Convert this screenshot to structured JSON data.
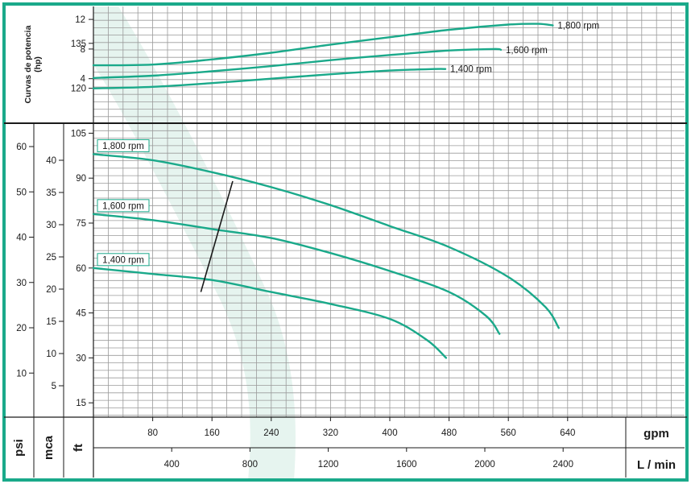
{
  "colors": {
    "frame": "#1aa98a",
    "curve": "#1aa98a",
    "grid": "#9a9a9a",
    "band": "#dcefe8",
    "text": "#1a1a1a"
  },
  "chart_data": [
    {
      "type": "line",
      "ylabel": "Curvas de potencia (hp)",
      "yticks": [
        "4",
        "8",
        "12"
      ],
      "ylim": [
        2,
        14.5
      ],
      "xlim": [
        0,
        760
      ],
      "grid": true,
      "series": [
        {
          "name": "1,800 rpm",
          "x": [
            0,
            80,
            160,
            240,
            320,
            400,
            480,
            560,
            600,
            620
          ],
          "y": [
            5.8,
            5.9,
            6.6,
            7.5,
            8.6,
            9.6,
            10.6,
            11.3,
            11.4,
            11.2
          ]
        },
        {
          "name": "1,600 rpm",
          "x": [
            0,
            80,
            160,
            240,
            320,
            400,
            480,
            540,
            550
          ],
          "y": [
            4.1,
            4.4,
            5.0,
            5.7,
            6.5,
            7.2,
            7.8,
            8.0,
            7.9
          ]
        },
        {
          "name": "1,400 rpm",
          "x": [
            0,
            80,
            160,
            240,
            320,
            400,
            460,
            475
          ],
          "y": [
            2.7,
            2.9,
            3.4,
            4.0,
            4.6,
            5.1,
            5.3,
            5.3
          ]
        }
      ]
    },
    {
      "type": "line",
      "xlim": [
        0,
        760
      ],
      "ylim": [
        0,
        150
      ],
      "grid": true,
      "x_axes": [
        {
          "unit": "gpm",
          "ticks": [
            "80",
            "160",
            "240",
            "320",
            "400",
            "480",
            "560",
            "640"
          ]
        },
        {
          "unit": "L / min",
          "ticks": [
            "400",
            "800",
            "1200",
            "1600",
            "2000",
            "2400"
          ]
        }
      ],
      "y_axes": [
        {
          "unit": "psi",
          "ticks": [
            "10",
            "20",
            "30",
            "40",
            "50",
            "60"
          ]
        },
        {
          "unit": "mca",
          "ticks": [
            "5",
            "10",
            "15",
            "20",
            "25",
            "30",
            "35",
            "40"
          ]
        },
        {
          "unit": "ft",
          "ticks": [
            "15",
            "30",
            "45",
            "60",
            "75",
            "90",
            "105",
            "120",
            "135"
          ]
        }
      ],
      "series": [
        {
          "name": "1,800 rpm",
          "x": [
            0,
            80,
            160,
            240,
            320,
            400,
            480,
            560,
            610,
            628
          ],
          "y": [
            98,
            96,
            92,
            87,
            81,
            74,
            67,
            57,
            47,
            40
          ]
        },
        {
          "name": "1,600 rpm",
          "x": [
            0,
            80,
            160,
            240,
            320,
            400,
            480,
            530,
            548
          ],
          "y": [
            78,
            76,
            73,
            70,
            65,
            59,
            52,
            44,
            38
          ]
        },
        {
          "name": "1,400 rpm",
          "x": [
            0,
            80,
            160,
            240,
            320,
            400,
            450,
            476
          ],
          "y": [
            60,
            58,
            56,
            52,
            48,
            43,
            36,
            30
          ]
        }
      ],
      "efficiency_line": {
        "x": [
          145,
          188
        ],
        "y": [
          52,
          89
        ]
      }
    }
  ]
}
